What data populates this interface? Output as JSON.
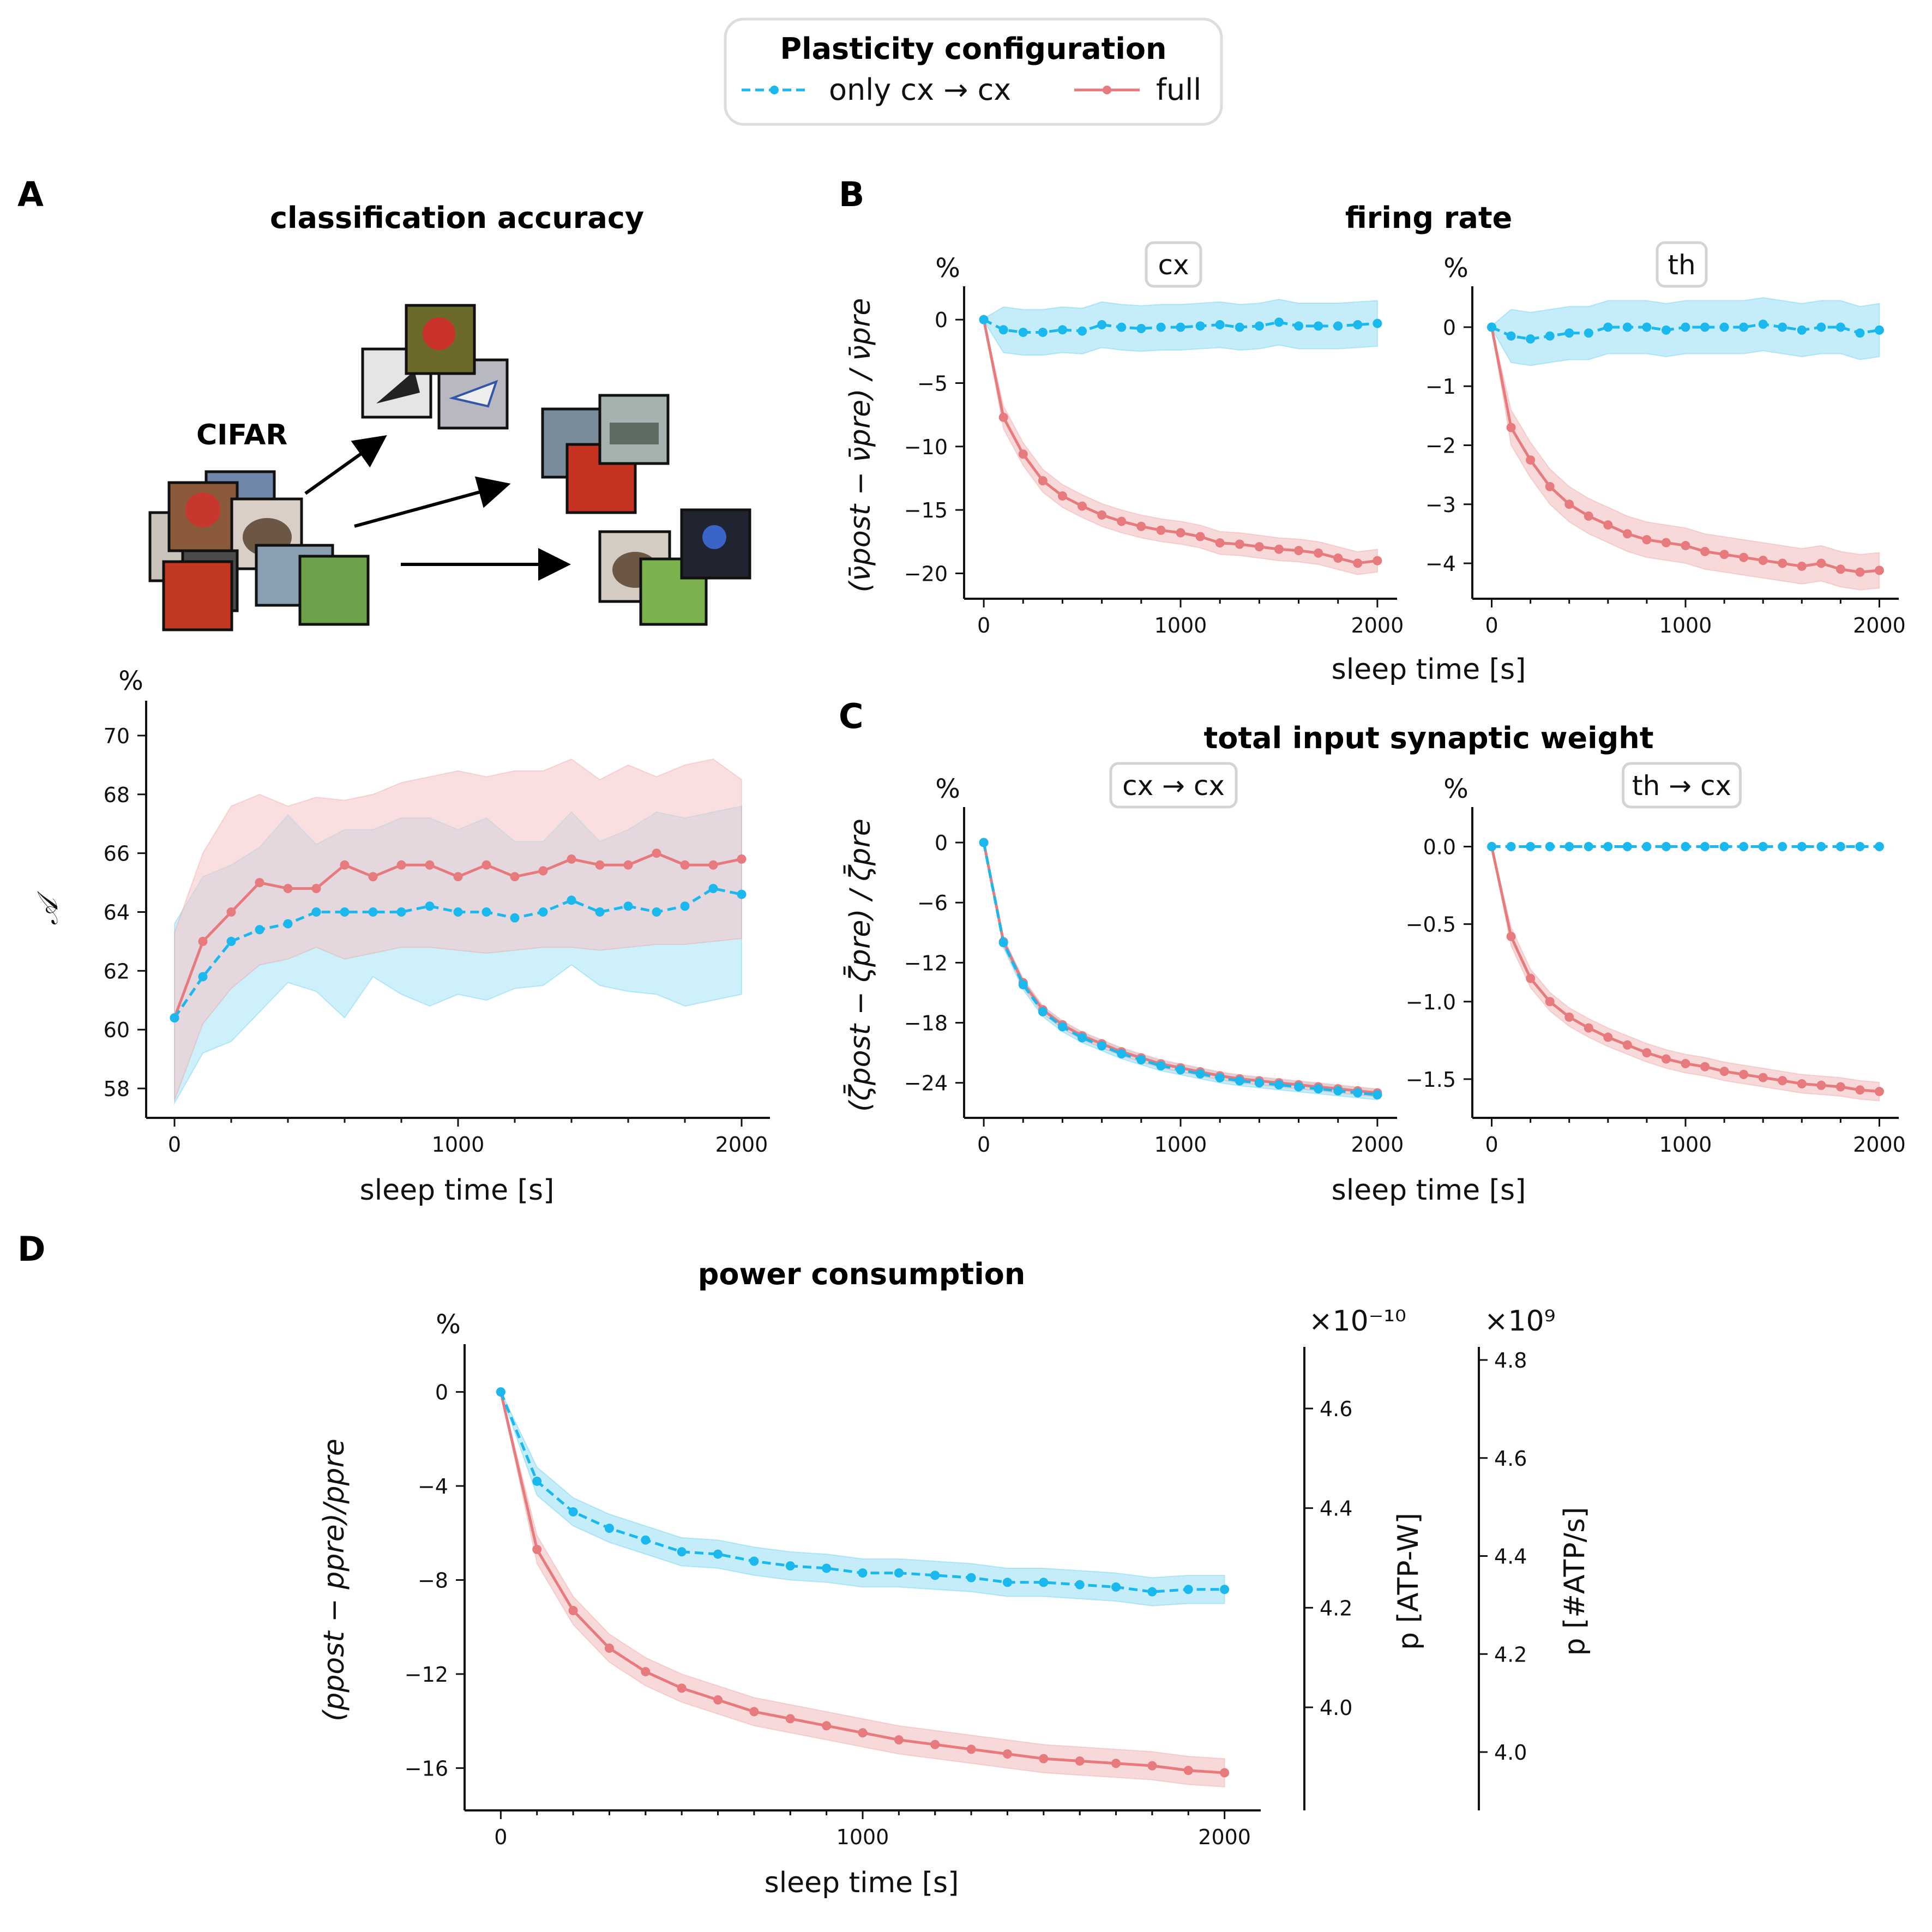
{
  "colors": {
    "cyan": "#1ab8ec",
    "red": "#e77a7d",
    "cyanFill": "#a6e3f6",
    "redFill": "#f5c4c6",
    "axis": "#111111"
  },
  "legend": {
    "title": "Plasticity configuration",
    "items": [
      "only cx → cx",
      "full"
    ]
  },
  "panel_labels": {
    "A": "A",
    "B": "B",
    "C": "C",
    "D": "D"
  },
  "titles": {
    "A": "classification accuracy",
    "B": "firing rate",
    "C": "total input synaptic weight",
    "D": "power consumption"
  },
  "cifar_label": "CIFAR",
  "xlabel": "sleep time [s]",
  "chart_data": [
    {
      "id": "A",
      "type": "line",
      "title": "classification accuracy",
      "ylabel": "𝒜",
      "unit": "%",
      "xlabel": "sleep time [s]",
      "xlim": [
        -100,
        2100
      ],
      "ylim": [
        57,
        71
      ],
      "xticks": [
        0,
        1000,
        2000
      ],
      "yticks": [
        58,
        60,
        62,
        64,
        66,
        68,
        70
      ],
      "x": [
        0,
        100,
        200,
        300,
        400,
        500,
        600,
        700,
        800,
        900,
        1000,
        1100,
        1200,
        1300,
        1400,
        1500,
        1600,
        1700,
        1800,
        1900,
        2000
      ],
      "series": [
        {
          "name": "only cx → cx",
          "color": "cyan",
          "dashed": true,
          "values": [
            60.4,
            61.8,
            63.0,
            63.4,
            63.6,
            64.0,
            64.0,
            64.0,
            64.0,
            64.2,
            64.0,
            64.0,
            63.8,
            64.0,
            64.4,
            64.0,
            64.2,
            64.0,
            64.2,
            64.8,
            64.6
          ],
          "lower": [
            57.5,
            59.2,
            59.6,
            60.6,
            61.6,
            61.3,
            60.4,
            61.8,
            61.2,
            60.8,
            61.2,
            61.0,
            61.4,
            61.5,
            62.2,
            61.5,
            61.3,
            61.2,
            60.8,
            61.0,
            61.2
          ],
          "upper": [
            63.6,
            65.2,
            65.6,
            66.2,
            67.3,
            66.3,
            66.8,
            66.8,
            67.2,
            67.2,
            66.8,
            67.2,
            66.4,
            66.4,
            67.4,
            66.4,
            66.8,
            67.4,
            67.2,
            67.4,
            67.6
          ]
        },
        {
          "name": "full",
          "color": "red",
          "dashed": false,
          "values": [
            60.4,
            63.0,
            64.0,
            65.0,
            64.8,
            64.8,
            65.6,
            65.2,
            65.6,
            65.6,
            65.2,
            65.6,
            65.2,
            65.4,
            65.8,
            65.6,
            65.6,
            66.0,
            65.6,
            65.6,
            65.8
          ],
          "lower": [
            57.6,
            60.2,
            61.4,
            62.2,
            62.4,
            62.8,
            62.4,
            62.6,
            62.8,
            62.8,
            62.7,
            62.6,
            62.7,
            62.8,
            62.8,
            62.7,
            62.8,
            62.9,
            62.9,
            63.0,
            63.1
          ],
          "upper": [
            63.3,
            66.0,
            67.6,
            68.0,
            67.6,
            67.9,
            67.8,
            68.0,
            68.4,
            68.6,
            68.8,
            68.6,
            68.8,
            68.8,
            69.2,
            68.5,
            69.0,
            68.6,
            69.0,
            69.2,
            68.5
          ]
        }
      ]
    },
    {
      "id": "B1",
      "type": "line",
      "title": "firing rate",
      "subtitle": "cx",
      "unit": "%",
      "ylabel": "(ν̄post − ν̄pre) / ν̄pre",
      "xlim": [
        -100,
        2100
      ],
      "ylim": [
        -22,
        2.2
      ],
      "xticks": [
        0,
        1000,
        2000
      ],
      "yticks": [
        0,
        -5,
        -10,
        -15,
        -20
      ],
      "x": [
        0,
        100,
        200,
        300,
        400,
        500,
        600,
        700,
        800,
        900,
        1000,
        1100,
        1200,
        1300,
        1400,
        1500,
        1600,
        1700,
        1800,
        1900,
        2000
      ],
      "series": [
        {
          "name": "only cx → cx",
          "color": "cyan",
          "dashed": true,
          "values": [
            0,
            -0.8,
            -1.0,
            -1.0,
            -0.8,
            -0.9,
            -0.4,
            -0.6,
            -0.7,
            -0.6,
            -0.6,
            -0.5,
            -0.4,
            -0.6,
            -0.5,
            -0.2,
            -0.5,
            -0.5,
            -0.5,
            -0.4,
            -0.3
          ],
          "band": 1.8
        },
        {
          "name": "full",
          "color": "red",
          "dashed": false,
          "values": [
            0,
            -7.7,
            -10.6,
            -12.7,
            -13.9,
            -14.7,
            -15.4,
            -15.9,
            -16.3,
            -16.6,
            -16.8,
            -17.1,
            -17.6,
            -17.7,
            -17.9,
            -18.1,
            -18.2,
            -18.4,
            -18.8,
            -19.2,
            -19.0
          ],
          "band": 0.9
        }
      ]
    },
    {
      "id": "B2",
      "type": "line",
      "title": "firing rate",
      "subtitle": "th",
      "unit": "%",
      "xlim": [
        -100,
        2100
      ],
      "ylim": [
        -4.6,
        0.6
      ],
      "xticks": [
        0,
        1000,
        2000
      ],
      "yticks": [
        0,
        -1,
        -2,
        -3,
        -4
      ],
      "x": [
        0,
        100,
        200,
        300,
        400,
        500,
        600,
        700,
        800,
        900,
        1000,
        1100,
        1200,
        1300,
        1400,
        1500,
        1600,
        1700,
        1800,
        1900,
        2000
      ],
      "series": [
        {
          "name": "only cx → cx",
          "color": "cyan",
          "dashed": true,
          "values": [
            0,
            -0.15,
            -0.2,
            -0.15,
            -0.1,
            -0.1,
            0,
            0,
            0,
            -0.05,
            0,
            0,
            0,
            0,
            0.05,
            0,
            -0.05,
            0,
            0,
            -0.1,
            -0.05
          ],
          "band": 0.45
        },
        {
          "name": "full",
          "color": "red",
          "dashed": false,
          "values": [
            0,
            -1.7,
            -2.25,
            -2.7,
            -3.0,
            -3.2,
            -3.35,
            -3.5,
            -3.6,
            -3.65,
            -3.7,
            -3.8,
            -3.85,
            -3.9,
            -3.95,
            -4.0,
            -4.05,
            -4.0,
            -4.1,
            -4.15,
            -4.12
          ],
          "band": 0.3
        }
      ]
    },
    {
      "id": "C1",
      "type": "line",
      "title": "total input synaptic weight",
      "subtitle": "cx → cx",
      "unit": "%",
      "ylabel": "(ζ̄post − ζ̄pre) / ζ̄pre",
      "xlim": [
        -100,
        2100
      ],
      "ylim": [
        -27.5,
        3
      ],
      "xticks": [
        0,
        1000,
        2000
      ],
      "yticks": [
        0,
        -6,
        -12,
        -18,
        -24
      ],
      "x": [
        0,
        100,
        200,
        300,
        400,
        500,
        600,
        700,
        800,
        900,
        1000,
        1100,
        1200,
        1300,
        1400,
        1500,
        1600,
        1700,
        1800,
        1900,
        2000
      ],
      "series": [
        {
          "name": "only cx → cx",
          "color": "cyan",
          "dashed": true,
          "values": [
            0,
            -10.0,
            -14.2,
            -16.9,
            -18.4,
            -19.5,
            -20.3,
            -21.1,
            -21.7,
            -22.3,
            -22.7,
            -23.1,
            -23.5,
            -23.8,
            -24.0,
            -24.2,
            -24.4,
            -24.6,
            -24.8,
            -25.0,
            -25.2
          ],
          "band": 0.5
        },
        {
          "name": "full",
          "color": "red",
          "dashed": false,
          "values": [
            0,
            -9.9,
            -14.0,
            -16.7,
            -18.2,
            -19.3,
            -20.1,
            -20.9,
            -21.5,
            -22.1,
            -22.5,
            -22.9,
            -23.3,
            -23.6,
            -23.8,
            -24.0,
            -24.2,
            -24.4,
            -24.6,
            -24.8,
            -25.0
          ],
          "band": 0.4
        }
      ]
    },
    {
      "id": "C2",
      "type": "line",
      "title": "total input synaptic weight",
      "subtitle": "th → cx",
      "unit": "%",
      "xlim": [
        -100,
        2100
      ],
      "ylim": [
        -1.75,
        0.22
      ],
      "xticks": [
        0,
        1000,
        2000
      ],
      "yticks": [
        0,
        -0.5,
        -1.0,
        -1.5
      ],
      "yticklabels": [
        "0.0",
        "−0.5",
        "−1.0",
        "−1.5"
      ],
      "x": [
        0,
        100,
        200,
        300,
        400,
        500,
        600,
        700,
        800,
        900,
        1000,
        1100,
        1200,
        1300,
        1400,
        1500,
        1600,
        1700,
        1800,
        1900,
        2000
      ],
      "series": [
        {
          "name": "only cx → cx",
          "color": "cyan",
          "dashed": true,
          "values": [
            0,
            0,
            0,
            0,
            0,
            0,
            0,
            0,
            0,
            0,
            0,
            0,
            0,
            0,
            0,
            0,
            0,
            0,
            0,
            0,
            0
          ],
          "band": 0.0
        },
        {
          "name": "full",
          "color": "red",
          "dashed": false,
          "values": [
            0,
            -0.58,
            -0.85,
            -1.0,
            -1.1,
            -1.17,
            -1.23,
            -1.28,
            -1.33,
            -1.37,
            -1.4,
            -1.42,
            -1.45,
            -1.47,
            -1.49,
            -1.51,
            -1.53,
            -1.54,
            -1.55,
            -1.57,
            -1.58
          ],
          "band": 0.06
        }
      ]
    },
    {
      "id": "D",
      "type": "line",
      "title": "power consumption",
      "unit": "%",
      "ylabel": "(ppost − ppre)/ppre",
      "xlim": [
        -100,
        2100
      ],
      "ylim": [
        -17.8,
        1.8
      ],
      "xticks": [
        0,
        1000,
        2000
      ],
      "yticks": [
        0,
        -4,
        -8,
        -12,
        -16
      ],
      "x": [
        0,
        100,
        200,
        300,
        400,
        500,
        600,
        700,
        800,
        900,
        1000,
        1100,
        1200,
        1300,
        1400,
        1500,
        1600,
        1700,
        1800,
        1900,
        2000
      ],
      "series": [
        {
          "name": "only cx → cx",
          "color": "cyan",
          "dashed": true,
          "values": [
            0,
            -3.8,
            -5.1,
            -5.8,
            -6.3,
            -6.8,
            -6.9,
            -7.2,
            -7.4,
            -7.5,
            -7.7,
            -7.7,
            -7.8,
            -7.9,
            -8.1,
            -8.1,
            -8.2,
            -8.3,
            -8.5,
            -8.4,
            -8.4
          ],
          "band": 0.6
        },
        {
          "name": "full",
          "color": "red",
          "dashed": false,
          "values": [
            0,
            -6.7,
            -9.3,
            -10.9,
            -11.9,
            -12.6,
            -13.1,
            -13.6,
            -13.9,
            -14.2,
            -14.5,
            -14.8,
            -15.0,
            -15.2,
            -15.4,
            -15.6,
            -15.7,
            -15.8,
            -15.9,
            -16.1,
            -16.2
          ],
          "band": 0.6
        }
      ],
      "right_axes": [
        {
          "ylabel": "p [ATP-W]",
          "multiplier": "×10⁻¹⁰",
          "ticks": [
            4.6,
            4.4,
            4.2,
            4.0
          ],
          "ticklabels": [
            "4.6",
            "4.4",
            "4.2",
            "4.0"
          ]
        },
        {
          "ylabel": "p [#ATP/s]",
          "multiplier": "×10⁹",
          "ticks": [
            4.8,
            4.6,
            4.4,
            4.2,
            4.0
          ],
          "ticklabels": [
            "4.8",
            "4.6",
            "4.4",
            "4.2",
            "4.0"
          ]
        }
      ]
    }
  ]
}
